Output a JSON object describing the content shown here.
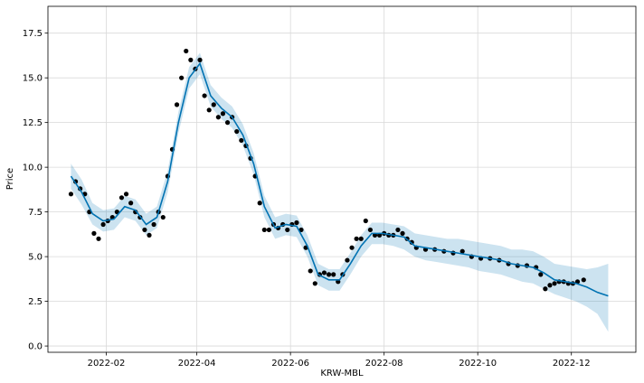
{
  "chart_data": {
    "type": "forecast",
    "xlabel": "KRW-MBL",
    "ylabel": "Price",
    "grid": true,
    "xlim": [
      "2021-12-25",
      "2023-01-12"
    ],
    "ylim": [
      -0.35,
      19.0
    ],
    "xticks": [
      {
        "value": "2022-02-01",
        "label": "2022-02"
      },
      {
        "value": "2022-04-01",
        "label": "2022-04"
      },
      {
        "value": "2022-06-01",
        "label": "2022-06"
      },
      {
        "value": "2022-08-01",
        "label": "2022-08"
      },
      {
        "value": "2022-10-01",
        "label": "2022-10"
      },
      {
        "value": "2022-12-01",
        "label": "2022-12"
      }
    ],
    "yticks": [
      {
        "value": 0,
        "label": "0.0"
      },
      2.5,
      {
        "value": 5,
        "label": "5.0"
      },
      7.5,
      {
        "value": 10,
        "label": "10.0"
      },
      12.5,
      {
        "value": 15,
        "label": "15.0"
      },
      17.5
    ],
    "observed": {
      "color": "#000000",
      "x": [
        "2022-01-09",
        "2022-01-12",
        "2022-01-15",
        "2022-01-18",
        "2022-01-21",
        "2022-01-24",
        "2022-01-27",
        "2022-01-30",
        "2022-02-02",
        "2022-02-05",
        "2022-02-08",
        "2022-02-11",
        "2022-02-14",
        "2022-02-17",
        "2022-02-20",
        "2022-02-23",
        "2022-02-26",
        "2022-03-01",
        "2022-03-04",
        "2022-03-07",
        "2022-03-10",
        "2022-03-13",
        "2022-03-16",
        "2022-03-19",
        "2022-03-22",
        "2022-03-25",
        "2022-03-28",
        "2022-03-31",
        "2022-04-03",
        "2022-04-06",
        "2022-04-09",
        "2022-04-12",
        "2022-04-15",
        "2022-04-18",
        "2022-04-21",
        "2022-04-24",
        "2022-04-27",
        "2022-04-30",
        "2022-05-03",
        "2022-05-06",
        "2022-05-09",
        "2022-05-12",
        "2022-05-15",
        "2022-05-18",
        "2022-05-21",
        "2022-05-24",
        "2022-05-27",
        "2022-05-30",
        "2022-06-02",
        "2022-06-05",
        "2022-06-08",
        "2022-06-11",
        "2022-06-14",
        "2022-06-17",
        "2022-06-20",
        "2022-06-23",
        "2022-06-26",
        "2022-06-29",
        "2022-07-02",
        "2022-07-05",
        "2022-07-08",
        "2022-07-11",
        "2022-07-14",
        "2022-07-17",
        "2022-07-20",
        "2022-07-23",
        "2022-07-26",
        "2022-07-29",
        "2022-08-01",
        "2022-08-04",
        "2022-08-07",
        "2022-08-10",
        "2022-08-13",
        "2022-08-16",
        "2022-08-19",
        "2022-08-22",
        "2022-08-28",
        "2022-09-03",
        "2022-09-09",
        "2022-09-15",
        "2022-09-21",
        "2022-09-27",
        "2022-10-03",
        "2022-10-09",
        "2022-10-15",
        "2022-10-21",
        "2022-10-27",
        "2022-11-02",
        "2022-11-08",
        "2022-11-11",
        "2022-11-14",
        "2022-11-17",
        "2022-11-20",
        "2022-11-23",
        "2022-11-26",
        "2022-11-29",
        "2022-12-02",
        "2022-12-05",
        "2022-12-09"
      ],
      "values": [
        8.5,
        9.2,
        8.8,
        8.5,
        7.5,
        6.3,
        6.0,
        6.8,
        7.0,
        7.2,
        7.5,
        8.3,
        8.5,
        8.0,
        7.5,
        7.2,
        6.5,
        6.2,
        6.8,
        7.5,
        7.2,
        9.5,
        11.0,
        13.5,
        15.0,
        16.5,
        16.0,
        15.5,
        16.0,
        14.0,
        13.2,
        13.5,
        12.8,
        13.0,
        12.5,
        12.8,
        12.0,
        11.5,
        11.2,
        10.5,
        9.5,
        8.0,
        6.5,
        6.5,
        6.8,
        6.6,
        6.8,
        6.5,
        6.8,
        6.9,
        6.5,
        5.5,
        4.2,
        3.5,
        4.0,
        4.1,
        4.0,
        4.0,
        3.6,
        4.0,
        4.8,
        5.5,
        6.0,
        6.0,
        7.0,
        6.5,
        6.2,
        6.2,
        6.3,
        6.2,
        6.2,
        6.5,
        6.3,
        6.0,
        5.8,
        5.5,
        5.4,
        5.4,
        5.3,
        5.2,
        5.3,
        5.0,
        4.9,
        4.9,
        4.8,
        4.6,
        4.5,
        4.5,
        4.4,
        4.0,
        3.2,
        3.4,
        3.5,
        3.6,
        3.6,
        3.5,
        3.5,
        3.6,
        3.7
      ]
    },
    "forecast": {
      "color": "#0072B2",
      "band_color": "#0072B2",
      "x": [
        "2022-01-09",
        "2022-01-16",
        "2022-01-23",
        "2022-01-30",
        "2022-02-06",
        "2022-02-13",
        "2022-02-20",
        "2022-02-27",
        "2022-03-06",
        "2022-03-13",
        "2022-03-20",
        "2022-03-27",
        "2022-04-03",
        "2022-04-10",
        "2022-04-17",
        "2022-04-24",
        "2022-05-01",
        "2022-05-08",
        "2022-05-15",
        "2022-05-22",
        "2022-05-29",
        "2022-06-05",
        "2022-06-12",
        "2022-06-19",
        "2022-06-26",
        "2022-07-03",
        "2022-07-10",
        "2022-07-17",
        "2022-07-24",
        "2022-07-31",
        "2022-08-07",
        "2022-08-14",
        "2022-08-21",
        "2022-08-28",
        "2022-09-04",
        "2022-09-11",
        "2022-09-18",
        "2022-09-25",
        "2022-10-02",
        "2022-10-09",
        "2022-10-16",
        "2022-10-23",
        "2022-10-30",
        "2022-11-06",
        "2022-11-13",
        "2022-11-20",
        "2022-11-27",
        "2022-12-04",
        "2022-12-11",
        "2022-12-18",
        "2022-12-25"
      ],
      "values": [
        9.5,
        8.6,
        7.4,
        7.0,
        7.1,
        7.8,
        7.6,
        6.8,
        7.2,
        9.2,
        12.5,
        15.0,
        15.8,
        14.0,
        13.3,
        12.8,
        11.8,
        10.2,
        7.8,
        6.6,
        6.8,
        6.7,
        5.6,
        4.0,
        3.7,
        3.7,
        4.6,
        5.6,
        6.3,
        6.3,
        6.2,
        6.1,
        5.6,
        5.5,
        5.4,
        5.3,
        5.2,
        5.1,
        5.0,
        4.9,
        4.8,
        4.6,
        4.5,
        4.4,
        4.1,
        3.7,
        3.6,
        3.5,
        3.3,
        3.0,
        2.8
      ],
      "lower": [
        8.8,
        7.9,
        6.8,
        6.4,
        6.5,
        7.2,
        7.0,
        6.2,
        6.6,
        8.6,
        11.9,
        14.4,
        15.2,
        13.4,
        12.7,
        12.2,
        11.2,
        9.6,
        7.2,
        6.0,
        6.2,
        6.1,
        5.0,
        3.4,
        3.1,
        3.1,
        4.0,
        5.0,
        5.7,
        5.7,
        5.6,
        5.4,
        5.0,
        4.8,
        4.7,
        4.6,
        4.5,
        4.4,
        4.2,
        4.1,
        4.0,
        3.8,
        3.6,
        3.5,
        3.2,
        2.9,
        2.7,
        2.5,
        2.2,
        1.8,
        0.8
      ],
      "upper": [
        10.2,
        9.3,
        8.0,
        7.6,
        7.7,
        8.4,
        8.2,
        7.4,
        7.8,
        9.8,
        13.1,
        15.6,
        16.4,
        14.6,
        13.9,
        13.4,
        12.4,
        10.8,
        8.4,
        7.2,
        7.4,
        7.3,
        6.2,
        4.6,
        4.3,
        4.3,
        5.2,
        6.2,
        6.9,
        6.9,
        6.8,
        6.7,
        6.3,
        6.2,
        6.1,
        6.0,
        6.0,
        5.9,
        5.8,
        5.7,
        5.6,
        5.4,
        5.4,
        5.3,
        5.0,
        4.6,
        4.5,
        4.4,
        4.3,
        4.4,
        4.6
      ]
    }
  }
}
